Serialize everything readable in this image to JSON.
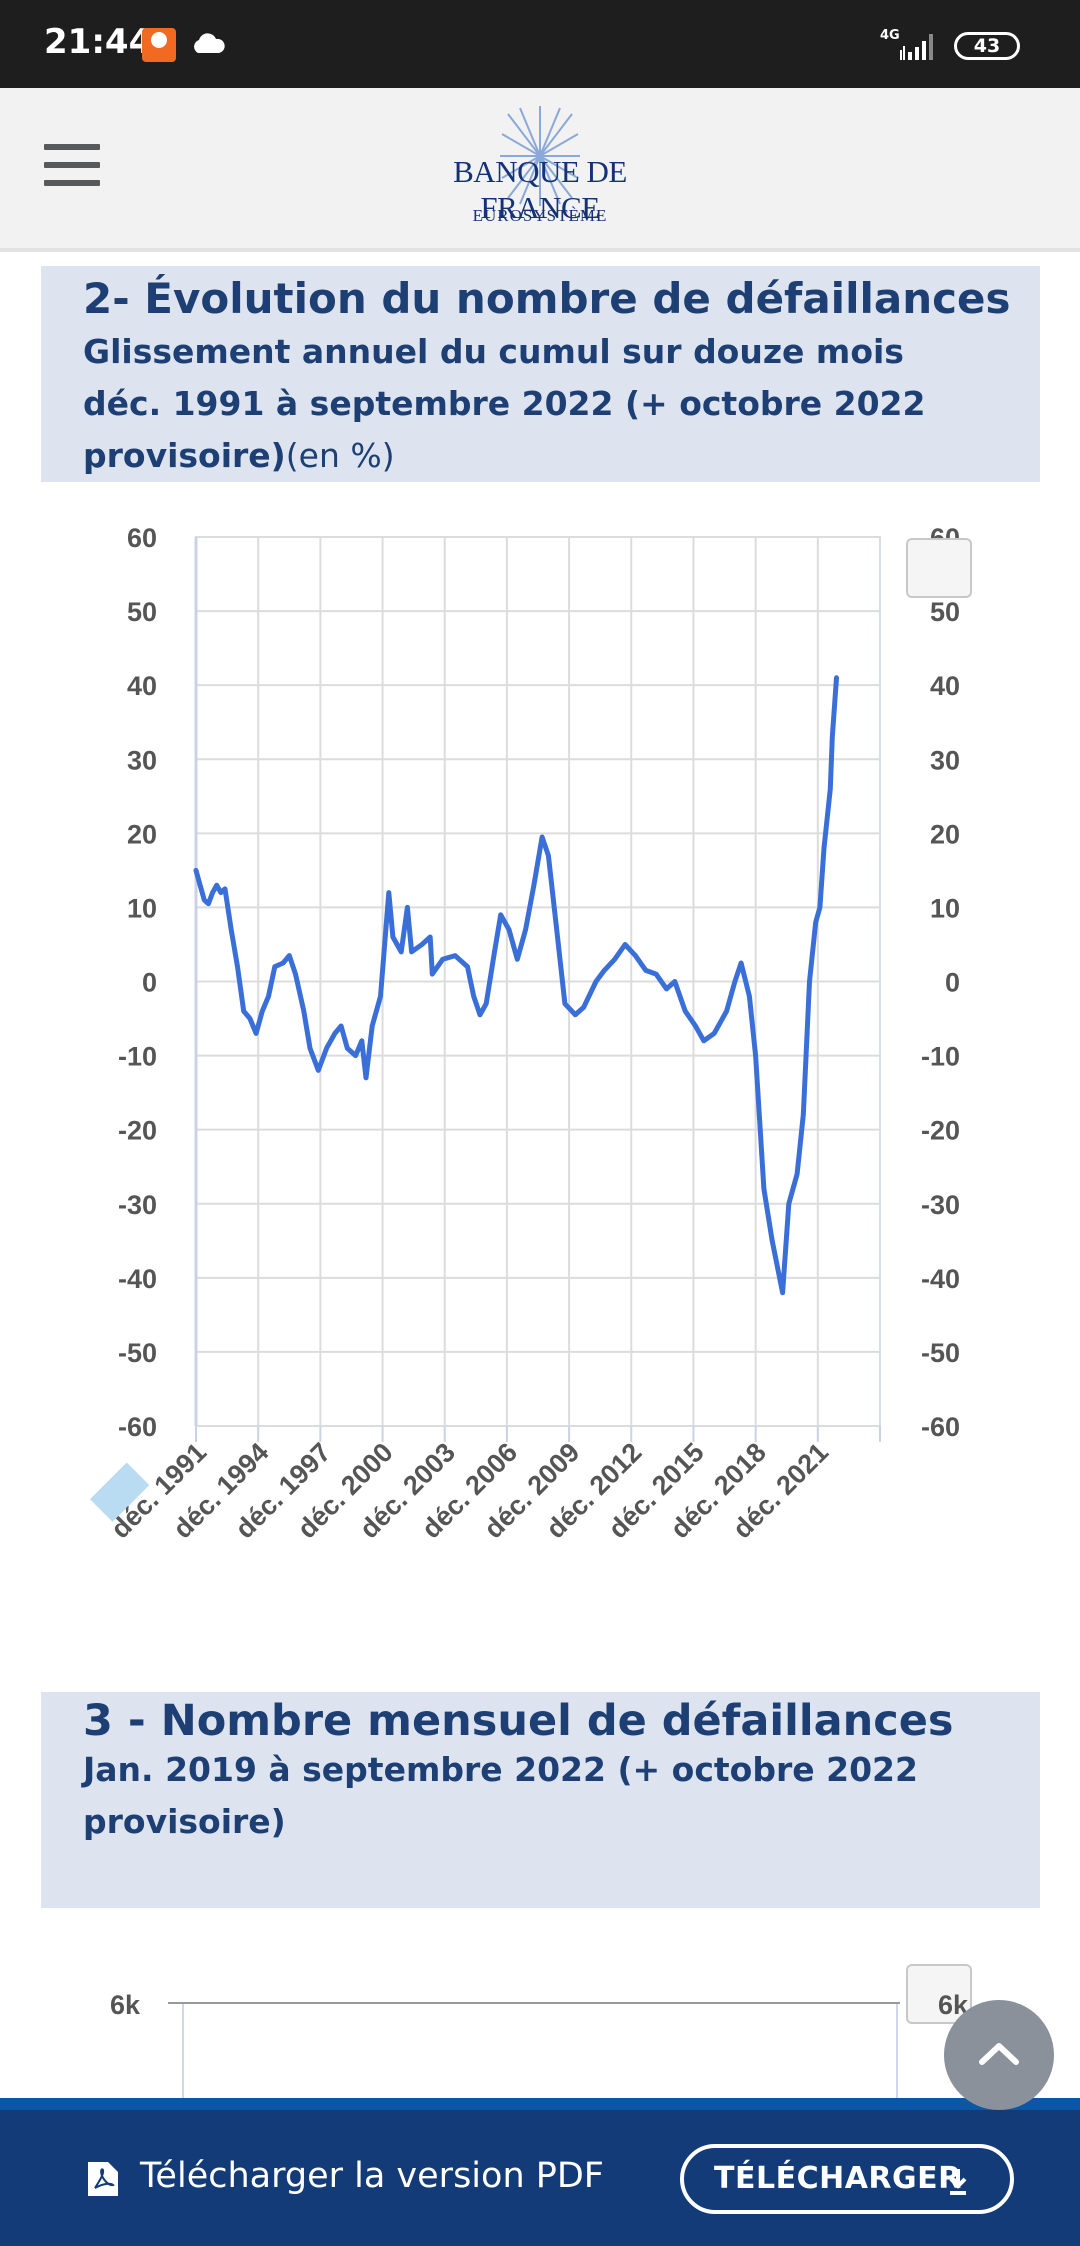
{
  "status_bar": {
    "time": "21:44",
    "network": "4G",
    "battery": "43"
  },
  "header": {
    "logo_title": "BANQUE DE FRANCE",
    "logo_subtitle": "EUROSYSTÈME"
  },
  "section2": {
    "title": "2- Évolution du nombre de défaillances",
    "subtitle_line1": "Glissement annuel du cumul sur douze mois",
    "subtitle_line2": "déc. 1991 à septembre 2022 (+ octobre 2022",
    "subtitle_line3_bold": "provisoire)",
    "subtitle_line3_light": "(en %)"
  },
  "chart_data": {
    "type": "line",
    "title": "",
    "xlabel": "",
    "ylabel": "",
    "ylim": [
      -60,
      60
    ],
    "y_ticks": [
      "60",
      "50",
      "40",
      "30",
      "20",
      "10",
      "0",
      "-10",
      "-20",
      "-30",
      "-40",
      "-50",
      "-60"
    ],
    "x_ticks": [
      "déc. 1991",
      "déc. 1994",
      "déc. 1997",
      "déc. 2000",
      "déc. 2003",
      "déc. 2006",
      "déc. 2009",
      "déc. 2012",
      "déc. 2015",
      "déc. 2018",
      "déc. 2021"
    ],
    "grid": true,
    "series_color": "#3b6fd8",
    "series": [
      {
        "values": [
          [
            1991.9,
            15
          ],
          [
            1992.1,
            13
          ],
          [
            1992.3,
            11
          ],
          [
            1992.5,
            10.5
          ],
          [
            1992.7,
            12
          ],
          [
            1992.9,
            13
          ],
          [
            1993.1,
            12
          ],
          [
            1993.3,
            12.5
          ],
          [
            1993.6,
            7
          ],
          [
            1993.9,
            2
          ],
          [
            1994.2,
            -4
          ],
          [
            1994.5,
            -5
          ],
          [
            1994.8,
            -7
          ],
          [
            1995.1,
            -4
          ],
          [
            1995.4,
            -2
          ],
          [
            1995.7,
            2
          ],
          [
            1996.1,
            2.5
          ],
          [
            1996.4,
            3.5
          ],
          [
            1996.7,
            1
          ],
          [
            1997.1,
            -4
          ],
          [
            1997.4,
            -9
          ],
          [
            1997.8,
            -12
          ],
          [
            1998.2,
            -9
          ],
          [
            1998.6,
            -7
          ],
          [
            1998.9,
            -6
          ],
          [
            1999.2,
            -9
          ],
          [
            1999.6,
            -10
          ],
          [
            1999.9,
            -8
          ],
          [
            2000.1,
            -13
          ],
          [
            2000.4,
            -6
          ],
          [
            2000.8,
            -2
          ],
          [
            2001.2,
            12
          ],
          [
            2001.4,
            6
          ],
          [
            2001.8,
            4
          ],
          [
            2002.1,
            10
          ],
          [
            2002.3,
            4
          ],
          [
            2002.8,
            5
          ],
          [
            2003.2,
            6
          ],
          [
            2003.3,
            1
          ],
          [
            2003.8,
            3
          ],
          [
            2004.4,
            3.5
          ],
          [
            2005.0,
            2
          ],
          [
            2005.3,
            -2
          ],
          [
            2005.6,
            -4.5
          ],
          [
            2005.9,
            -3
          ],
          [
            2006.3,
            4
          ],
          [
            2006.6,
            9
          ],
          [
            2007.0,
            7
          ],
          [
            2007.4,
            3
          ],
          [
            2007.8,
            7
          ],
          [
            2008.2,
            13
          ],
          [
            2008.6,
            19.5
          ],
          [
            2008.9,
            17
          ],
          [
            2009.3,
            7
          ],
          [
            2009.7,
            -3
          ],
          [
            2010.2,
            -4.5
          ],
          [
            2010.6,
            -3.5
          ],
          [
            2011.2,
            0
          ],
          [
            2011.6,
            1.5
          ],
          [
            2012.1,
            3
          ],
          [
            2012.6,
            5
          ],
          [
            2013.1,
            3.5
          ],
          [
            2013.6,
            1.5
          ],
          [
            2014.1,
            1
          ],
          [
            2014.6,
            -1
          ],
          [
            2015.0,
            0
          ],
          [
            2015.5,
            -4
          ],
          [
            2016.0,
            -6
          ],
          [
            2016.4,
            -8
          ],
          [
            2016.9,
            -7
          ],
          [
            2017.5,
            -4
          ],
          [
            2017.9,
            0
          ],
          [
            2018.2,
            2.5
          ],
          [
            2018.6,
            -2
          ],
          [
            2018.9,
            -10
          ],
          [
            2019.3,
            -28
          ],
          [
            2019.7,
            -35
          ],
          [
            2020.2,
            -42
          ],
          [
            2020.5,
            -30
          ],
          [
            2020.9,
            -26
          ],
          [
            2021.2,
            -18
          ],
          [
            2021.5,
            0
          ],
          [
            2021.8,
            8
          ],
          [
            2022.0,
            10
          ],
          [
            2022.2,
            18
          ],
          [
            2022.5,
            26
          ],
          [
            2022.6,
            33
          ],
          [
            2022.8,
            41
          ]
        ]
      }
    ]
  },
  "section3": {
    "title": "3 - Nombre mensuel de défaillances",
    "subtitle_line1": "Jan. 2019 à septembre 2022 (+ octobre 2022",
    "subtitle_line2": "provisoire)",
    "axis_top_label": "6k"
  },
  "bottom_bar": {
    "pdf_text": "Télécharger la version PDF",
    "download_label": "TÉLÉCHARGER"
  }
}
